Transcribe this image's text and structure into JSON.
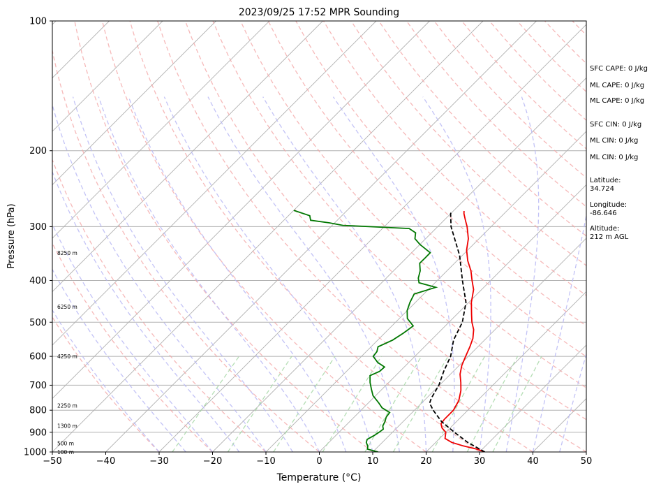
{
  "chart_data": {
    "type": "line",
    "title": "2023/09/25 17:52 MPR Sounding",
    "xlabel": "Temperature (°C)",
    "ylabel": "Pressure (hPa)",
    "xlim": [
      -50,
      50
    ],
    "ylim": [
      1000,
      100
    ],
    "y_scale": "log",
    "grid": true,
    "skew": true,
    "x_ticks": [
      -50,
      -40,
      -30,
      -20,
      -10,
      0,
      10,
      20,
      30,
      40,
      50
    ],
    "y_ticks": [
      1000,
      900,
      800,
      700,
      600,
      500,
      400,
      300,
      200,
      100
    ],
    "height_labels": [
      {
        "pressure": 1000,
        "label": "100 m"
      },
      {
        "pressure": 955,
        "label": "500 m"
      },
      {
        "pressure": 870,
        "label": "1300 m"
      },
      {
        "pressure": 780,
        "label": "2250 m"
      },
      {
        "pressure": 600,
        "label": "4250 m"
      },
      {
        "pressure": 460,
        "label": "6250 m"
      },
      {
        "pressure": 345,
        "label": "8250 m"
      }
    ],
    "series": [
      {
        "key": "temperature",
        "color": "#ee0000",
        "style": "solid",
        "points": [
          [
            1000,
            31
          ],
          [
            985,
            29
          ],
          [
            968,
            25.8
          ],
          [
            950,
            23
          ],
          [
            930,
            21
          ],
          [
            900,
            20
          ],
          [
            880,
            18.5
          ],
          [
            860,
            17.5
          ],
          [
            840,
            17.3
          ],
          [
            800,
            17.3
          ],
          [
            760,
            16.5
          ],
          [
            720,
            15
          ],
          [
            690,
            13.5
          ],
          [
            660,
            11.8
          ],
          [
            630,
            10.5
          ],
          [
            600,
            9.5
          ],
          [
            570,
            8.5
          ],
          [
            545,
            7.5
          ],
          [
            520,
            6
          ],
          [
            500,
            4.3
          ],
          [
            480,
            2.8
          ],
          [
            450,
            0.5
          ],
          [
            420,
            -1.5
          ],
          [
            400,
            -3.5
          ],
          [
            380,
            -5.5
          ],
          [
            360,
            -8
          ],
          [
            340,
            -10.2
          ],
          [
            320,
            -12
          ],
          [
            300,
            -14.5
          ],
          [
            290,
            -16
          ],
          [
            280,
            -17.5
          ],
          [
            276,
            -18
          ]
        ]
      },
      {
        "key": "dewpoint",
        "color": "#007700",
        "style": "solid",
        "points": [
          [
            1000,
            11
          ],
          [
            985,
            8.5
          ],
          [
            970,
            8
          ],
          [
            950,
            7
          ],
          [
            935,
            6.6
          ],
          [
            915,
            7.2
          ],
          [
            900,
            7.5
          ],
          [
            885,
            7.7
          ],
          [
            870,
            7
          ],
          [
            850,
            6.6
          ],
          [
            830,
            6
          ],
          [
            810,
            5.8
          ],
          [
            790,
            3.5
          ],
          [
            770,
            2
          ],
          [
            740,
            -0.5
          ],
          [
            715,
            -2
          ],
          [
            690,
            -3.5
          ],
          [
            665,
            -4.8
          ],
          [
            650,
            -3.8
          ],
          [
            635,
            -3.7
          ],
          [
            620,
            -5.8
          ],
          [
            600,
            -7.8
          ],
          [
            585,
            -8
          ],
          [
            570,
            -8.7
          ],
          [
            550,
            -7.2
          ],
          [
            530,
            -6.5
          ],
          [
            510,
            -6
          ],
          [
            490,
            -8.5
          ],
          [
            470,
            -10
          ],
          [
            450,
            -11
          ],
          [
            430,
            -11.8
          ],
          [
            415,
            -9
          ],
          [
            405,
            -13
          ],
          [
            395,
            -14
          ],
          [
            380,
            -15
          ],
          [
            365,
            -16.5
          ],
          [
            355,
            -16.5
          ],
          [
            345,
            -16.5
          ],
          [
            330,
            -20
          ],
          [
            320,
            -22
          ],
          [
            310,
            -23
          ],
          [
            303,
            -25
          ],
          [
            298,
            -38
          ],
          [
            294,
            -41
          ],
          [
            290,
            -45
          ],
          [
            283,
            -46
          ],
          [
            275,
            -50
          ]
        ]
      },
      {
        "key": "parcel_profile",
        "color": "#000000",
        "style": "dashed",
        "points": [
          [
            1000,
            31
          ],
          [
            950,
            26
          ],
          [
            900,
            21.6
          ],
          [
            850,
            17.2
          ],
          [
            800,
            13.5
          ],
          [
            770,
            11.5
          ],
          [
            750,
            10.9
          ],
          [
            700,
            9.9
          ],
          [
            650,
            8.2
          ],
          [
            600,
            6.7
          ],
          [
            550,
            4.2
          ],
          [
            500,
            2.5
          ],
          [
            450,
            -0.5
          ],
          [
            400,
            -5.3
          ],
          [
            350,
            -10.5
          ],
          [
            300,
            -17.5
          ],
          [
            280,
            -20
          ],
          [
            276,
            -20.3
          ]
        ]
      }
    ]
  },
  "stats": [
    {
      "label": "SFC CAPE: 0 J/kg"
    },
    {
      "label": "ML CAPE: 0 J/kg"
    },
    {
      "label": "ML CAPE: 0 J/kg"
    },
    {
      "label": "SFC CIN: 0 J/kg"
    },
    {
      "label": "ML CIN: 0 J/kg"
    },
    {
      "label": "ML CIN: 0 J/kg"
    },
    {
      "label": "Latitude:",
      "value": "34.724"
    },
    {
      "label": "Longitude:",
      "value": "-86.646"
    },
    {
      "label": "Altitude:",
      "value": "212 m AGL"
    }
  ]
}
